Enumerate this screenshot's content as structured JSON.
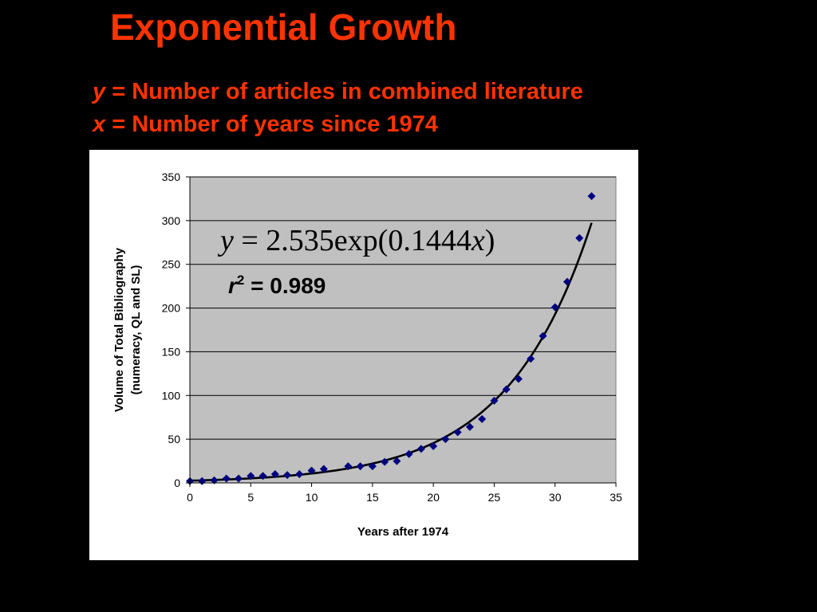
{
  "slide": {
    "title": "Exponential Growth",
    "line_y": {
      "var": "y",
      "text": " = Number of articles in combined literature"
    },
    "line_x": {
      "var": "x",
      "text": " = Number of years since 1974"
    }
  },
  "chart_data": {
    "type": "scatter",
    "xlabel": "Years after 1974",
    "ylabel_line1": "Volume of Total Bibliography",
    "ylabel_line2": "(numeracy, QL and SL)",
    "xlim": [
      0,
      35
    ],
    "ylim": [
      0,
      350
    ],
    "x_ticks": [
      "0",
      "5",
      "10",
      "15",
      "20",
      "25",
      "30",
      "35"
    ],
    "y_ticks": [
      "0",
      "50",
      "100",
      "150",
      "200",
      "250",
      "300",
      "350"
    ],
    "grid": "horizontal",
    "legend": "none",
    "plot_background": "#c0c0c0",
    "marker_color": "#000080",
    "fit_line_color": "#000000",
    "points": {
      "x": [
        0,
        1,
        2,
        3,
        4,
        5,
        6,
        7,
        8,
        9,
        10,
        11,
        13,
        14,
        15,
        16,
        17,
        18,
        19,
        20,
        21,
        22,
        23,
        24,
        25,
        26,
        27,
        28,
        29,
        30,
        31,
        32,
        33
      ],
      "y": [
        2,
        2,
        3,
        5,
        5,
        8,
        8,
        10,
        9,
        10,
        14,
        16,
        19,
        19,
        19,
        24,
        25,
        33,
        39,
        42,
        50,
        58,
        64,
        73,
        94,
        107,
        119,
        142,
        168,
        201,
        230,
        280,
        328
      ]
    },
    "fit": {
      "a": 2.535,
      "b": 0.1444,
      "x_range": [
        0,
        33
      ]
    },
    "equation": {
      "y": "y",
      "rhs": " = 2.535exp(0.1444",
      "x": "x",
      "close": ")"
    },
    "r2": {
      "r": "r",
      "sup": "2",
      "value": " = 0.989"
    }
  }
}
